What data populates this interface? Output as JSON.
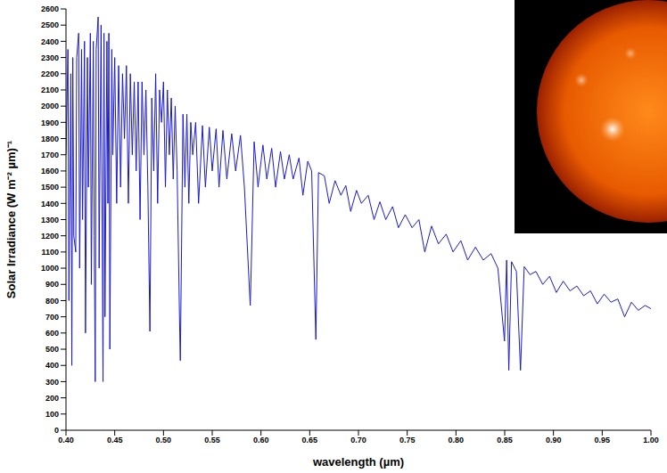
{
  "chart_data": {
    "type": "line",
    "x_label": "wavelength (µm)",
    "y_label": "Solar Irradiance (W m⁻² µm)⁻¹",
    "grid": false,
    "color": "#1a1acc",
    "xlim": [
      0.4,
      1.0
    ],
    "xticks": [
      {
        "value": 0.4,
        "label": "0.40"
      },
      0.45,
      {
        "value": 0.5,
        "label": "0.50"
      },
      0.55,
      {
        "value": 0.6,
        "label": "0.60"
      },
      0.65,
      {
        "value": 0.7,
        "label": "0.70"
      },
      0.75,
      {
        "value": 0.8,
        "label": "0.80"
      },
      0.85,
      {
        "value": 0.9,
        "label": "0.90"
      },
      0.95,
      {
        "value": 1.0,
        "label": "1.00"
      }
    ],
    "ylim": [
      0,
      2600
    ],
    "yticks": [
      0,
      100,
      200,
      300,
      400,
      500,
      600,
      700,
      800,
      900,
      1000,
      1100,
      1200,
      1300,
      1400,
      1500,
      1600,
      1700,
      1800,
      1900,
      2000,
      2100,
      2200,
      2300,
      2400,
      2500,
      2600
    ],
    "x": [
      0.4,
      0.402,
      0.403,
      0.405,
      0.406,
      0.407,
      0.408,
      0.41,
      0.411,
      0.413,
      0.414,
      0.416,
      0.417,
      0.419,
      0.42,
      0.422,
      0.423,
      0.425,
      0.426,
      0.428,
      0.429,
      0.43,
      0.431,
      0.433,
      0.434,
      0.436,
      0.438,
      0.439,
      0.44,
      0.442,
      0.443,
      0.444,
      0.445,
      0.447,
      0.448,
      0.45,
      0.452,
      0.454,
      0.456,
      0.458,
      0.46,
      0.462,
      0.464,
      0.466,
      0.468,
      0.47,
      0.472,
      0.474,
      0.476,
      0.478,
      0.48,
      0.482,
      0.484,
      0.4861,
      0.488,
      0.49,
      0.492,
      0.494,
      0.496,
      0.498,
      0.5,
      0.502,
      0.504,
      0.506,
      0.508,
      0.51,
      0.512,
      0.514,
      0.5167,
      0.5173,
      0.52,
      0.522,
      0.524,
      0.526,
      0.528,
      0.53,
      0.533,
      0.536,
      0.54,
      0.543,
      0.547,
      0.55,
      0.554,
      0.557,
      0.561,
      0.565,
      0.57,
      0.574,
      0.579,
      0.583,
      0.589,
      0.5896,
      0.593,
      0.597,
      0.602,
      0.606,
      0.611,
      0.615,
      0.62,
      0.624,
      0.629,
      0.633,
      0.639,
      0.643,
      0.648,
      0.652,
      0.6563,
      0.659,
      0.665,
      0.67,
      0.676,
      0.682,
      0.687,
      0.692,
      0.698,
      0.703,
      0.71,
      0.716,
      0.722,
      0.728,
      0.735,
      0.741,
      0.748,
      0.755,
      0.762,
      0.768,
      0.775,
      0.782,
      0.79,
      0.797,
      0.805,
      0.812,
      0.82,
      0.828,
      0.836,
      0.843,
      0.8498,
      0.852,
      0.8542,
      0.857,
      0.862,
      0.8662,
      0.87,
      0.876,
      0.882,
      0.889,
      0.896,
      0.903,
      0.91,
      0.917,
      0.924,
      0.931,
      0.938,
      0.945,
      0.952,
      0.959,
      0.966,
      0.973,
      0.98,
      0.987,
      0.994,
      1.0
    ],
    "values": [
      1700,
      2350,
      800,
      2200,
      400,
      2300,
      1200,
      1100,
      2300,
      2450,
      1000,
      2350,
      1300,
      2400,
      600,
      2300,
      1500,
      2450,
      900,
      2400,
      1200,
      300,
      2350,
      2550,
      1000,
      2500,
      300,
      2450,
      700,
      2400,
      1400,
      2450,
      500,
      2350,
      1700,
      2300,
      1400,
      2250,
      1500,
      2200,
      1800,
      2250,
      1400,
      2200,
      1700,
      2150,
      1600,
      2150,
      1300,
      2150,
      1700,
      2100,
      1500,
      610,
      2050,
      1600,
      2200,
      1400,
      2100,
      1900,
      2150,
      1500,
      2100,
      1700,
      2050,
      1550,
      2000,
      1600,
      600,
      430,
      1950,
      1500,
      1950,
      1400,
      1900,
      1700,
      1900,
      1400,
      1880,
      1500,
      1870,
      1600,
      1860,
      1500,
      1850,
      1550,
      1830,
      1600,
      1820,
      1500,
      770,
      900,
      1780,
      1500,
      1760,
      1550,
      1740,
      1500,
      1720,
      1550,
      1700,
      1550,
      1680,
      1450,
      1660,
      1600,
      560,
      1590,
      1570,
      1400,
      1540,
      1450,
      1510,
      1350,
      1480,
      1400,
      1450,
      1300,
      1410,
      1300,
      1380,
      1250,
      1330,
      1250,
      1300,
      1100,
      1260,
      1150,
      1210,
      1100,
      1170,
      1050,
      1130,
      1050,
      1090,
      1000,
      550,
      1050,
      370,
      1040,
      980,
      370,
      1010,
      960,
      980,
      900,
      950,
      850,
      920,
      860,
      890,
      830,
      860,
      780,
      840,
      790,
      810,
      700,
      790,
      740,
      770,
      750
    ]
  }
}
